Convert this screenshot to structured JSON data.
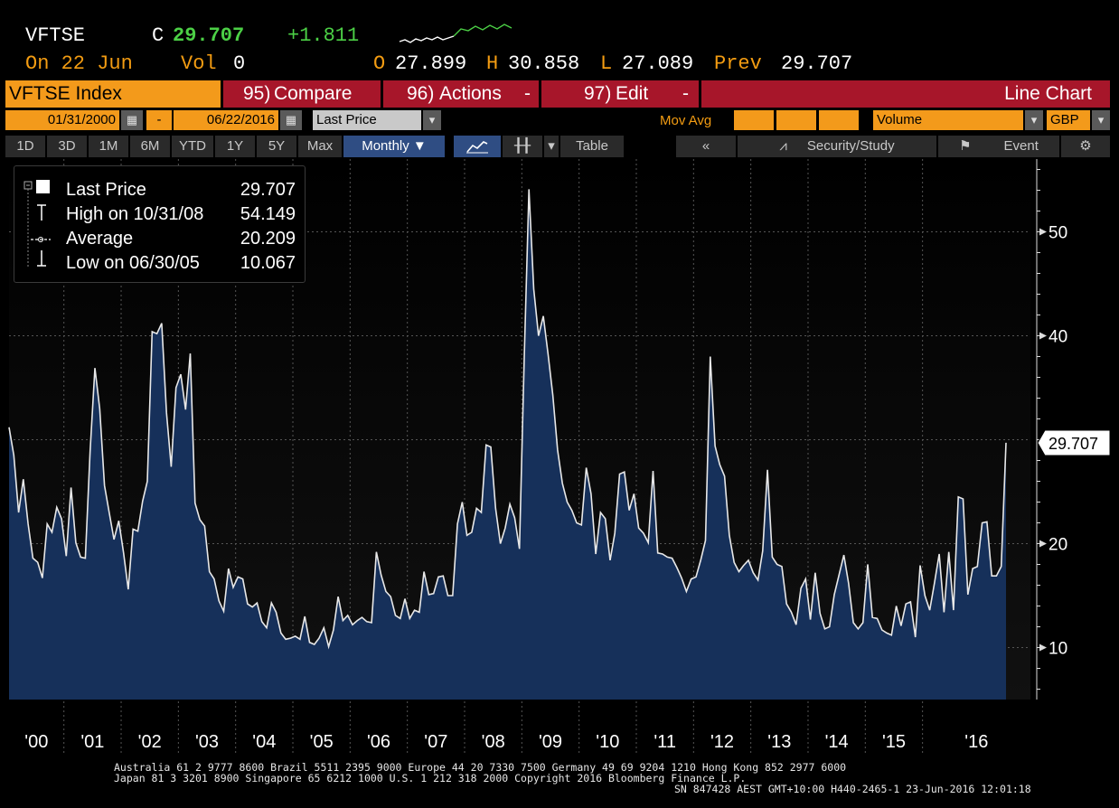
{
  "quote": {
    "ticker": "VFTSE",
    "close_label": "C",
    "close": "29.707",
    "change": "+1.811",
    "date_label": "On 22 Jun",
    "vol_label": "Vol",
    "vol": "0",
    "open_label": "O",
    "open": "27.899",
    "high_label": "H",
    "high": "30.858",
    "low_label": "L",
    "low": "27.089",
    "prev_label": "Prev",
    "prev": "29.707"
  },
  "toolbar": {
    "index_label": "VFTSE Index",
    "compare_num": "95)",
    "compare_label": "Compare",
    "actions_num": "96)",
    "actions_label": "Actions",
    "edit_num": "97)",
    "edit_label": "Edit",
    "chart_type": "Line Chart",
    "start_date": "01/31/2000",
    "dash": "-",
    "end_date": "06/22/2016",
    "field": "Last Price",
    "mov_avg_label": "Mov Avg",
    "volume_label": "Volume",
    "currency": "GBP",
    "periods": [
      "1D",
      "3D",
      "1M",
      "6M",
      "YTD",
      "1Y",
      "5Y",
      "Max"
    ],
    "frequency": "Monthly",
    "table_label": "Table",
    "security_study_label": "Security/Study",
    "event_label": "Event"
  },
  "legend": {
    "last_price_label": "Last Price",
    "last_price_value": "29.707",
    "high_label": "High on 10/31/08",
    "high_value": "54.149",
    "average_label": "Average",
    "average_value": "20.209",
    "low_label": "Low on 06/30/05",
    "low_value": "10.067"
  },
  "last_tag": "29.707",
  "colors": {
    "accent_orange": "#f39a1b",
    "button_red": "#a7162a",
    "quote_green": "#4cd046",
    "area_fill": "#16305a",
    "line": "#e8e8e8"
  },
  "footer": {
    "line1": "Australia 61 2 9777 8600 Brazil 5511 2395 9000 Europe 44 20 7330 7500 Germany 49 69 9204 1210 Hong Kong 852 2977 6000",
    "line2": "Japan 81 3 3201 8900        Singapore 65 6212 1000        U.S. 1 212 318 2000             Copyright 2016 Bloomberg Finance L.P.",
    "line3": "SN 847428 AEST GMT+10:00 H440-2465-1 23-Jun-2016 12:01:18"
  },
  "chart_data": {
    "type": "area",
    "title": "",
    "xlabel": "",
    "ylabel": "",
    "x_tick_labels": [
      "'00",
      "'01",
      "'02",
      "'03",
      "'04",
      "'05",
      "'06",
      "'07",
      "'08",
      "'09",
      "'10",
      "'11",
      "'12",
      "'13",
      "'14",
      "'15",
      "'16"
    ],
    "y_ticks": [
      10,
      20,
      30,
      40,
      50
    ],
    "y_tick_labels": [
      "10",
      "20",
      "",
      "40",
      "50"
    ],
    "ylim": [
      5,
      57
    ],
    "x_start": "2000-01",
    "x_end": "2016-06",
    "grid": true,
    "legend_position": "top-left",
    "series": [
      {
        "name": "Last Price",
        "frequency": "monthly",
        "start": "2000-01",
        "values": [
          31.2,
          28.5,
          23.0,
          26.2,
          21.9,
          18.6,
          18.2,
          16.7,
          21.9,
          21.1,
          23.5,
          22.4,
          18.8,
          25.4,
          20.1,
          18.7,
          18.6,
          28.9,
          36.9,
          33.0,
          25.6,
          23.0,
          20.4,
          22.2,
          19.1,
          15.6,
          21.4,
          21.2,
          24.1,
          26.0,
          40.4,
          40.2,
          41.2,
          32.6,
          27.4,
          35.0,
          36.3,
          32.9,
          38.3,
          23.9,
          22.3,
          21.7,
          17.3,
          16.6,
          14.5,
          13.5,
          17.6,
          15.8,
          16.8,
          16.6,
          14.2,
          13.9,
          14.3,
          12.5,
          11.9,
          14.3,
          13.4,
          11.4,
          10.8,
          10.9,
          11.1,
          10.8,
          13.0,
          10.5,
          10.3,
          10.9,
          11.9,
          10.1,
          11.7,
          14.9,
          12.6,
          13.1,
          12.2,
          12.6,
          12.9,
          12.5,
          12.4,
          19.2,
          17.0,
          15.4,
          14.9,
          13.1,
          12.8,
          14.7,
          12.8,
          13.6,
          13.4,
          17.3,
          15.1,
          15.2,
          16.8,
          16.9,
          15.0,
          15.0,
          21.9,
          24.0,
          20.8,
          21.1,
          23.4,
          23.0,
          29.5,
          29.3,
          23.4,
          20.0,
          21.5,
          23.8,
          22.5,
          19.5,
          37.9,
          54.1,
          44.5,
          40.0,
          41.9,
          38.2,
          34.3,
          29.0,
          25.8,
          24.0,
          23.2,
          22.0,
          21.8,
          27.3,
          24.8,
          19.0,
          23.0,
          22.4,
          18.4,
          21.0,
          26.7,
          26.9,
          23.2,
          24.8,
          21.5,
          21.0,
          20.1,
          27.0,
          19.1,
          19.0,
          18.7,
          18.6,
          17.7,
          16.7,
          15.4,
          16.6,
          16.8,
          18.4,
          20.3,
          38.0,
          29.4,
          27.6,
          26.5,
          20.8,
          18.2,
          17.3,
          17.9,
          18.4,
          17.2,
          16.5,
          19.3,
          27.1,
          18.7,
          18.0,
          17.8,
          14.2,
          13.4,
          12.2,
          15.7,
          16.6,
          12.7,
          17.2,
          13.3,
          11.8,
          12.0,
          15.1,
          17.0,
          18.9,
          16.2,
          12.4,
          11.8,
          12.4,
          18.0,
          12.9,
          12.8,
          11.7,
          11.4,
          11.2,
          14.0,
          12.1,
          14.2,
          14.4,
          11.0,
          17.9,
          15.0,
          13.6,
          16.2,
          19.0,
          13.4,
          19.2,
          13.6,
          24.5,
          24.3,
          15.1,
          17.6,
          17.8,
          22.0,
          22.1,
          16.9,
          16.9,
          17.8,
          29.7
        ]
      }
    ]
  }
}
